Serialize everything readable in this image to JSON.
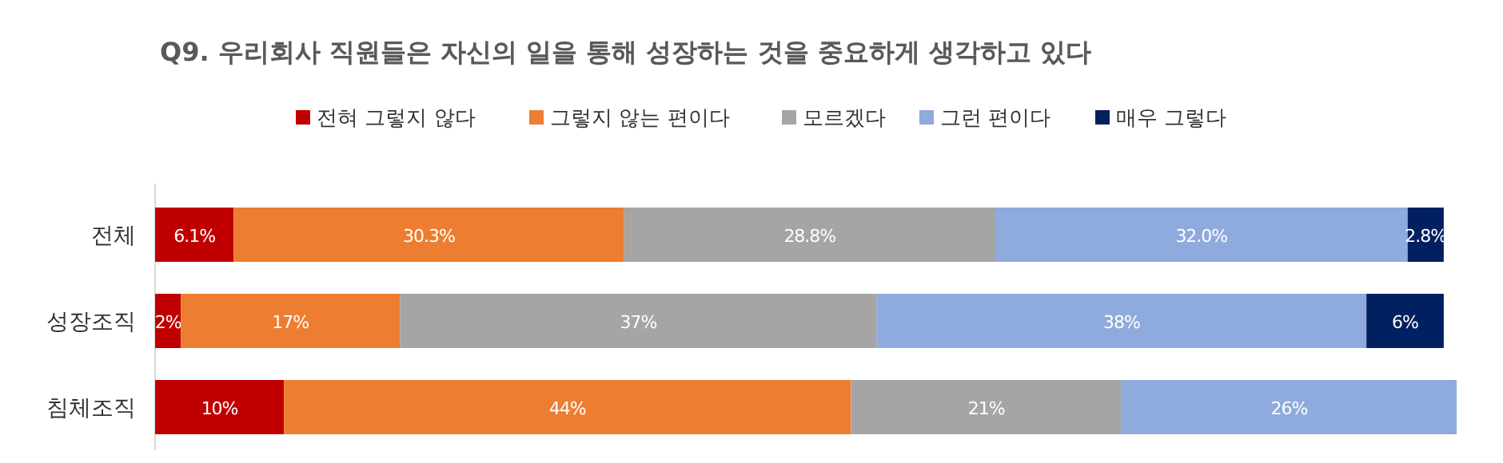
{
  "chart_data": {
    "type": "bar",
    "orientation": "horizontal",
    "stacked": true,
    "title": "Q9. 우리회사 직원들은 자신의 일을 통해 성장하는 것을 중요하게 생각하고 있다",
    "categories": [
      "전체",
      "성장조직",
      "침체조직"
    ],
    "legend": "top",
    "series": [
      {
        "name": "전혀 그렇지 않다",
        "color": "#c00000",
        "values": [
          6.1,
          2,
          10
        ],
        "value_labels": [
          "6.1%",
          "2%",
          "10%"
        ]
      },
      {
        "name": "그렇지 않는 편이다",
        "color": "#ed7d31",
        "values": [
          30.3,
          17,
          44
        ],
        "value_labels": [
          "30.3%",
          "17%",
          "44%"
        ]
      },
      {
        "name": "모르겠다",
        "color": "#a5a5a5",
        "values": [
          28.8,
          37,
          21
        ],
        "value_labels": [
          "28.8%",
          "37%",
          "21%"
        ]
      },
      {
        "name": "그런 편이다",
        "color": "#8faadc",
        "values": [
          32.0,
          38,
          26
        ],
        "value_labels": [
          "32.0%",
          "38%",
          "26%"
        ]
      },
      {
        "name": "매우 그렇다",
        "color": "#002060",
        "values": [
          2.8,
          6,
          null
        ],
        "value_labels": [
          "2.8%",
          "6%",
          null
        ]
      }
    ]
  }
}
